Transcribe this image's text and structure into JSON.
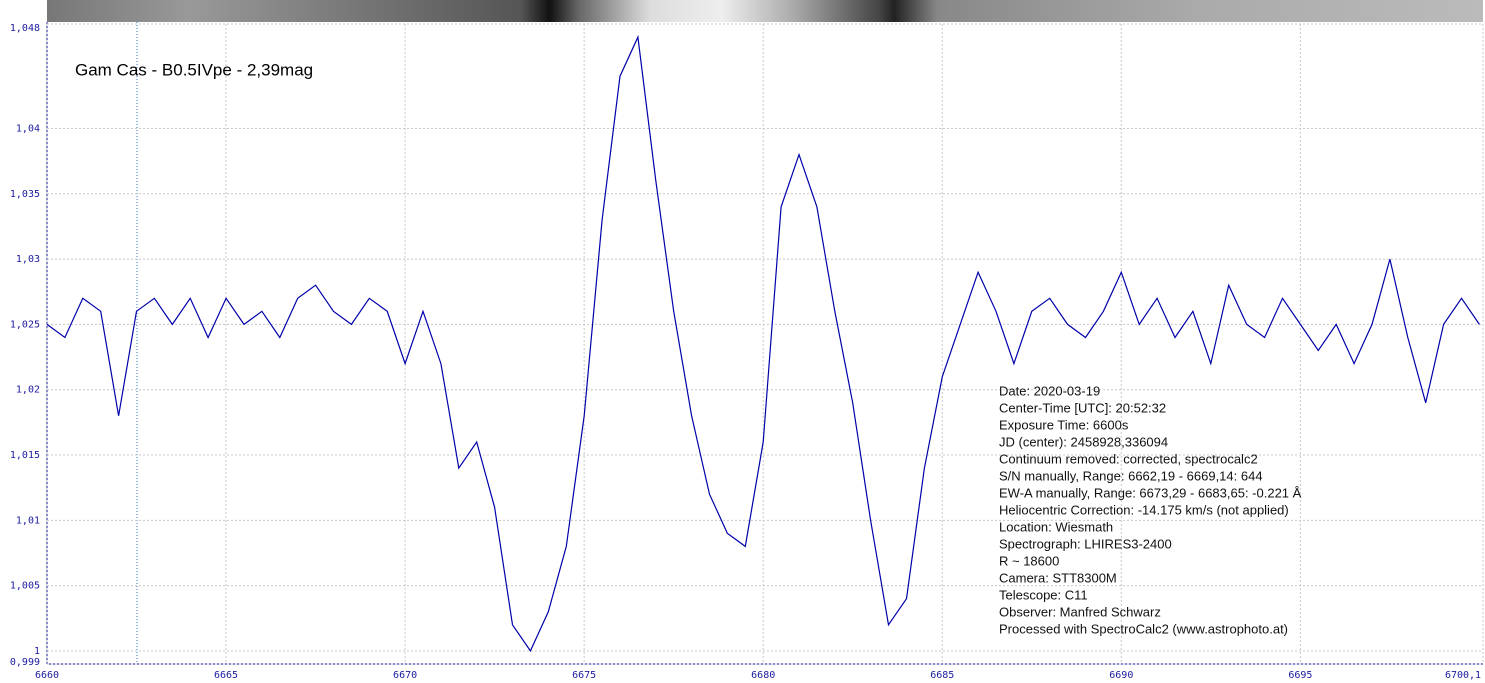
{
  "chart_data": {
    "type": "line",
    "title": "Gam Cas - B0.5IVpe - 2,39mag",
    "annotations": [
      "Date: 2020-03-19",
      "Center-Time [UTC]: 20:52:32",
      "Exposure Time: 6600s",
      "JD (center): 2458928,336094",
      "Continuum removed: corrected, spectrocalc2",
      "S/N manually, Range: 6662,19 - 6669,14: 644",
      "EW-A manually, Range: 6673,29 - 6683,65: -0.221 Å",
      "Heliocentric Correction: -14.175 km/s (not applied)",
      "Location: Wiesmath",
      "Spectrograph: LHIRES3-2400",
      "R ~ 18600",
      "Camera: STT8300M",
      "Telescope: C11",
      "Observer: Manfred Schwarz",
      "Processed with SpectroCalc2 (www.astrophoto.at)"
    ],
    "x": [
      6660,
      6660.5,
      6661,
      6661.5,
      6662,
      6662.5,
      6663,
      6663.5,
      6664,
      6664.5,
      6665,
      6665.5,
      6666,
      6666.5,
      6667,
      6667.5,
      6668,
      6668.5,
      6669,
      6669.5,
      6670,
      6670.5,
      6671,
      6671.5,
      6672,
      6672.5,
      6673,
      6673.5,
      6674,
      6674.5,
      6675,
      6675.5,
      6676,
      6676.5,
      6677,
      6677.5,
      6678,
      6678.5,
      6679,
      6679.5,
      6680,
      6680.5,
      6681,
      6681.5,
      6682,
      6682.5,
      6683,
      6683.5,
      6684,
      6684.5,
      6685,
      6685.5,
      6686,
      6686.5,
      6687,
      6687.5,
      6688,
      6688.5,
      6689,
      6689.5,
      6690,
      6690.5,
      6691,
      6691.5,
      6692,
      6692.5,
      6693,
      6693.5,
      6694,
      6694.5,
      6695,
      6695.5,
      6696,
      6696.5,
      6697,
      6697.5,
      6698,
      6698.5,
      6699,
      6699.5,
      6700
    ],
    "values": [
      1.025,
      1.024,
      1.027,
      1.026,
      1.018,
      1.026,
      1.027,
      1.025,
      1.027,
      1.024,
      1.027,
      1.025,
      1.026,
      1.024,
      1.027,
      1.028,
      1.026,
      1.025,
      1.027,
      1.026,
      1.022,
      1.026,
      1.022,
      1.014,
      1.016,
      1.011,
      1.002,
      1.0,
      1.003,
      1.008,
      1.018,
      1.033,
      1.044,
      1.047,
      1.036,
      1.026,
      1.018,
      1.012,
      1.009,
      1.008,
      1.016,
      1.034,
      1.038,
      1.034,
      1.026,
      1.019,
      1.01,
      1.002,
      1.004,
      1.014,
      1.021,
      1.025,
      1.029,
      1.026,
      1.022,
      1.026,
      1.027,
      1.025,
      1.024,
      1.026,
      1.029,
      1.025,
      1.027,
      1.024,
      1.026,
      1.022,
      1.028,
      1.025,
      1.024,
      1.027,
      1.025,
      1.023,
      1.025,
      1.022,
      1.025,
      1.03,
      1.024,
      1.019,
      1.025,
      1.027,
      1.025
    ],
    "color": "#0000aa",
    "xlim": [
      6660,
      6700.1
    ],
    "xticks": [
      6660,
      6665,
      6670,
      6675,
      6680,
      6685,
      6690,
      6695,
      {
        "value": 6700.1,
        "label": "6700,1"
      }
    ],
    "ylim": [
      0.999,
      1.048
    ],
    "yticks": [
      {
        "value": 0.999,
        "label": "0,999"
      },
      1,
      {
        "value": 1.005,
        "label": "1,005"
      },
      {
        "value": 1.01,
        "label": "1,01"
      },
      {
        "value": 1.015,
        "label": "1,015"
      },
      {
        "value": 1.02,
        "label": "1,02"
      },
      {
        "value": 1.025,
        "label": "1,025"
      },
      {
        "value": 1.03,
        "label": "1,03"
      },
      {
        "value": 1.035,
        "label": "1,035"
      },
      {
        "value": 1.04,
        "label": "1,04"
      },
      {
        "value": 1.048,
        "label": "1,048"
      }
    ],
    "grid": true
  }
}
